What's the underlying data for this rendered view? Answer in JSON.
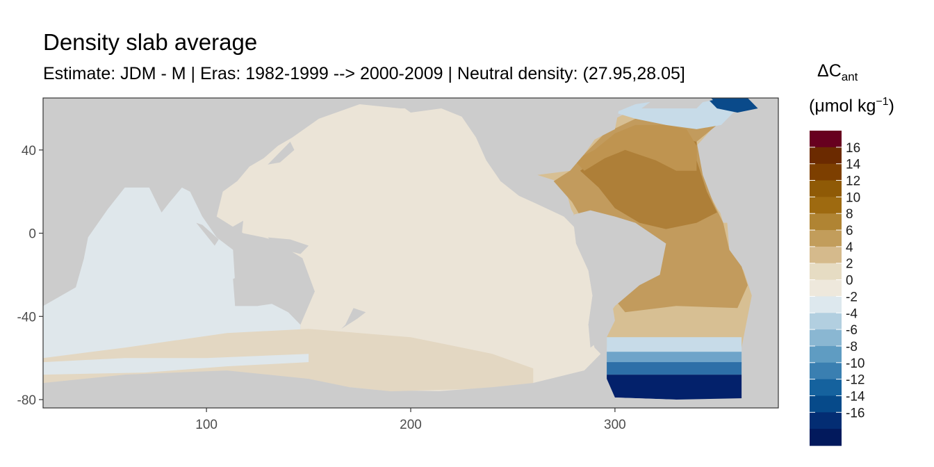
{
  "title": "Density slab average",
  "subtitle": "Estimate: JDM - M | Eras: 1982-1999 --> 2000-2009 | Neutral density: (27.95,28.05]",
  "legend": {
    "title_symbol": "ΔC",
    "title_subscript": "ant",
    "unit_open": "(μmol kg",
    "unit_sup": "−1",
    "unit_close": ")",
    "labels": [
      "16",
      "14",
      "12",
      "10",
      "8",
      "6",
      "4",
      "2",
      "0",
      "-2",
      "-4",
      "-6",
      "-8",
      "-10",
      "-12",
      "-14",
      "-16"
    ],
    "colors": [
      "#67001f",
      "#6b2a00",
      "#7d3f00",
      "#8f5a06",
      "#9e6a10",
      "#b08433",
      "#c29d5b",
      "#d5ba8c",
      "#e6dcc3",
      "#eee8dc",
      "#dde8ee",
      "#b2cfe0",
      "#8ab7d2",
      "#5f9cc2",
      "#3a7fb1",
      "#15629e",
      "#064a8a",
      "#032d73",
      "#02195c"
    ]
  },
  "map_data": {
    "type": "heatmap",
    "x_ticks": [
      "100",
      "200",
      "300"
    ],
    "x_tick_values": [
      100,
      200,
      300
    ],
    "y_ticks": [
      "40",
      "0",
      "-40",
      "-80"
    ],
    "y_tick_values": [
      40,
      0,
      -40,
      -80
    ],
    "xlim": [
      20,
      380
    ],
    "ylim": [
      -84,
      65
    ],
    "colors": {
      "background": "#ffffff",
      "land": "#cccccc",
      "indian": "#dfe7eb",
      "pacific": "#ebe4d7",
      "southern_tan": "#e3d7c2",
      "atlantic_n": "#bf9450",
      "atlantic_core": "#ae7f38",
      "atlantic_tropics": "#c29b5d",
      "atlantic_s": "#d7bf93",
      "so_blue_light": "#c7dbe8",
      "so_blue_mid": "#6fa4c9",
      "so_blue": "#2d6fa8",
      "so_navy": "#03216b",
      "arctic_blue": "#0a4a8a"
    }
  }
}
